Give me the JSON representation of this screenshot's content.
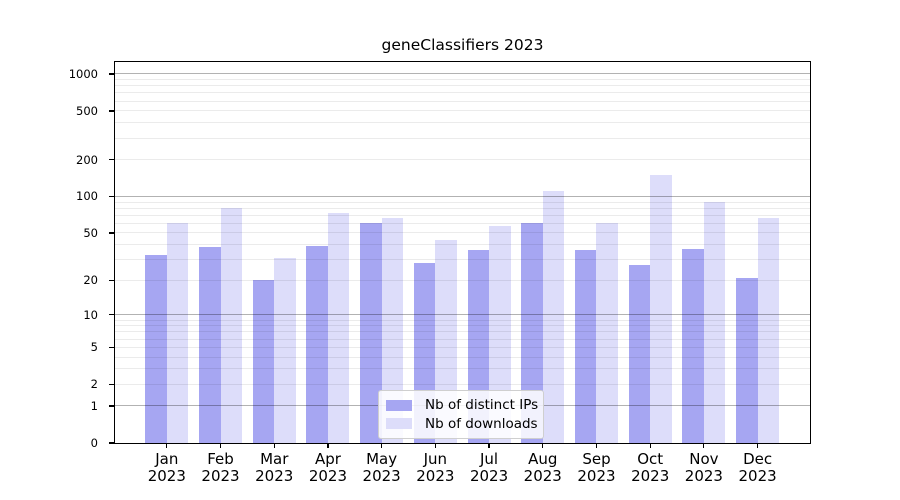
{
  "colors": {
    "background": "#ffffff",
    "spine": "#000000",
    "grid_major": "rgba(0,0,0,0.30)",
    "grid_minor": "rgba(0,0,0,0.08)",
    "ips_bar": "#a6a6f2",
    "downloads_bar": "#ddddfa"
  },
  "chart_data": {
    "type": "bar",
    "title": "geneClassifiers 2023",
    "categories": [
      {
        "month": "Jan",
        "year": "2023"
      },
      {
        "month": "Feb",
        "year": "2023"
      },
      {
        "month": "Mar",
        "year": "2023"
      },
      {
        "month": "Apr",
        "year": "2023"
      },
      {
        "month": "May",
        "year": "2023"
      },
      {
        "month": "Jun",
        "year": "2023"
      },
      {
        "month": "Jul",
        "year": "2023"
      },
      {
        "month": "Aug",
        "year": "2023"
      },
      {
        "month": "Sep",
        "year": "2023"
      },
      {
        "month": "Oct",
        "year": "2023"
      },
      {
        "month": "Nov",
        "year": "2023"
      },
      {
        "month": "Dec",
        "year": "2023"
      }
    ],
    "series": [
      {
        "name": "Nb of distinct IPs",
        "color": "#a6a6f2",
        "values": [
          33,
          38,
          20,
          39,
          60,
          28,
          36,
          60,
          36,
          27,
          37,
          21
        ]
      },
      {
        "name": "Nb of downloads",
        "color": "#ddddfa",
        "values": [
          61,
          80,
          31,
          73,
          66,
          44,
          57,
          111,
          61,
          150,
          90,
          67
        ]
      }
    ],
    "xlabel": "",
    "ylabel": "",
    "yscale": "log10(value+1)",
    "ylim": [
      0,
      1250
    ],
    "y_ticks": [
      0,
      1,
      2,
      5,
      10,
      20,
      50,
      100,
      200,
      500,
      1000
    ],
    "y_major_grid": [
      1,
      10,
      100,
      1000
    ],
    "grid": true,
    "legend_position": "lower center"
  }
}
